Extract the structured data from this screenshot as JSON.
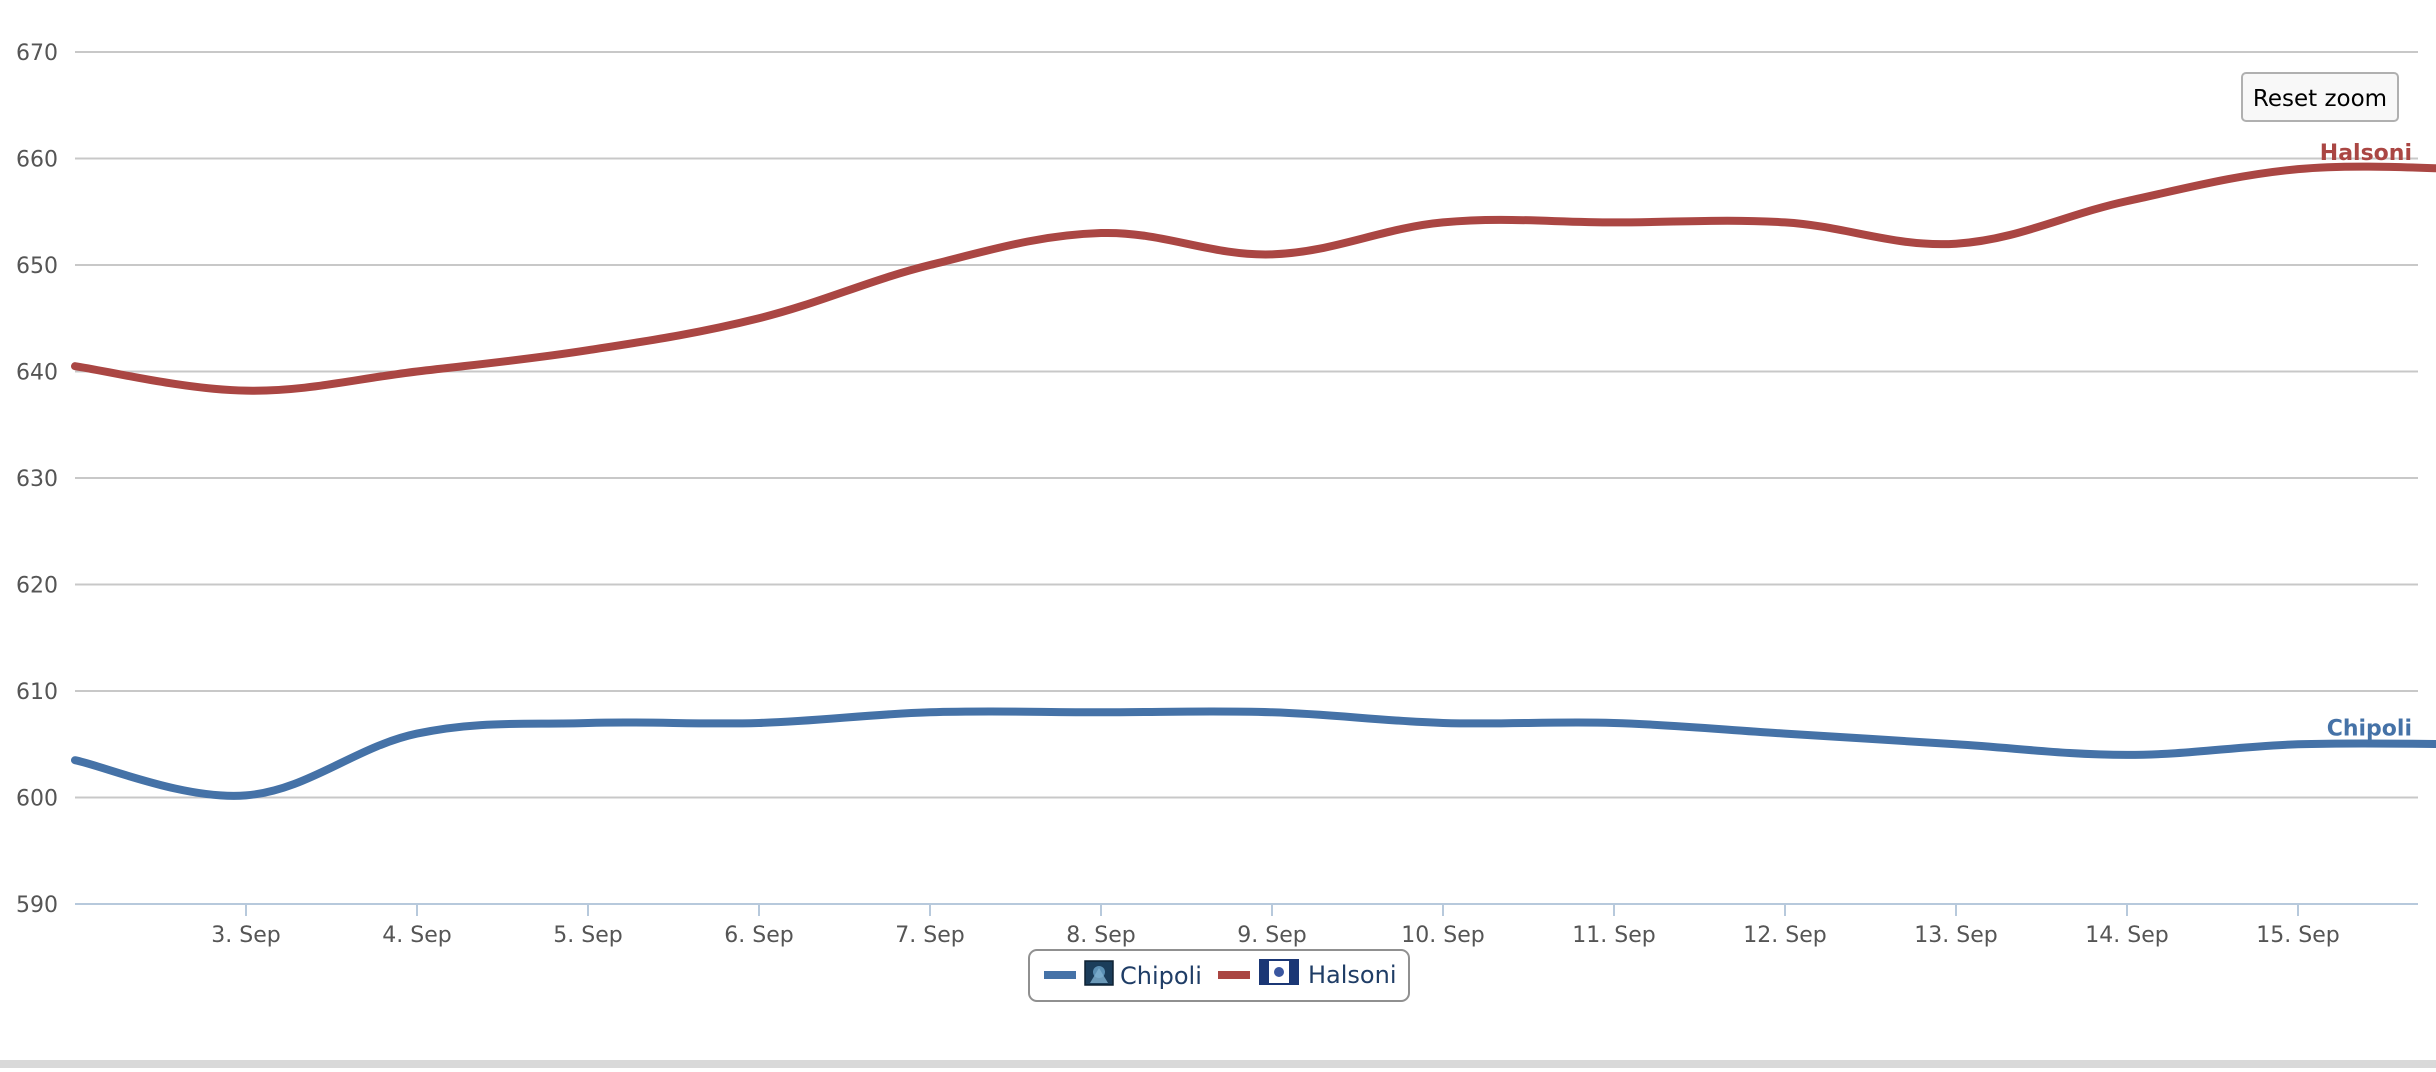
{
  "chart_data": {
    "type": "line",
    "title": "",
    "xlabel": "",
    "ylabel": "",
    "ylim": [
      590,
      670
    ],
    "yticks": [
      590,
      600,
      610,
      620,
      630,
      640,
      650,
      660,
      670
    ],
    "x_tick_labels": [
      "3. Sep",
      "4. Sep",
      "5. Sep",
      "6. Sep",
      "7. Sep",
      "8. Sep",
      "9. Sep",
      "10. Sep",
      "11. Sep",
      "12. Sep",
      "13. Sep",
      "14. Sep",
      "15. Sep"
    ],
    "x": [
      "2. Sep",
      "3. Sep",
      "4. Sep",
      "5. Sep",
      "6. Sep",
      "7. Sep",
      "8. Sep",
      "9. Sep",
      "10. Sep",
      "11. Sep",
      "12. Sep",
      "13. Sep",
      "14. Sep",
      "15. Sep",
      "16. Sep"
    ],
    "grid": true,
    "legend_position": "bottom-center",
    "series": [
      {
        "name": "Chipoli",
        "color": "#4572a7",
        "icon": "chipoli-flag-icon",
        "values": [
          603.5,
          600.2,
          606,
          607,
          607,
          608,
          608,
          608,
          607,
          607,
          606,
          605,
          604,
          605,
          605
        ]
      },
      {
        "name": "Halsoni",
        "color": "#aa4643",
        "icon": "halsoni-flag-icon",
        "values": [
          640.5,
          638.2,
          640,
          642,
          645,
          650,
          653,
          651,
          654,
          654,
          654,
          652,
          656,
          659,
          659
        ]
      }
    ]
  },
  "controls": {
    "reset_zoom_label": "Reset zoom"
  }
}
